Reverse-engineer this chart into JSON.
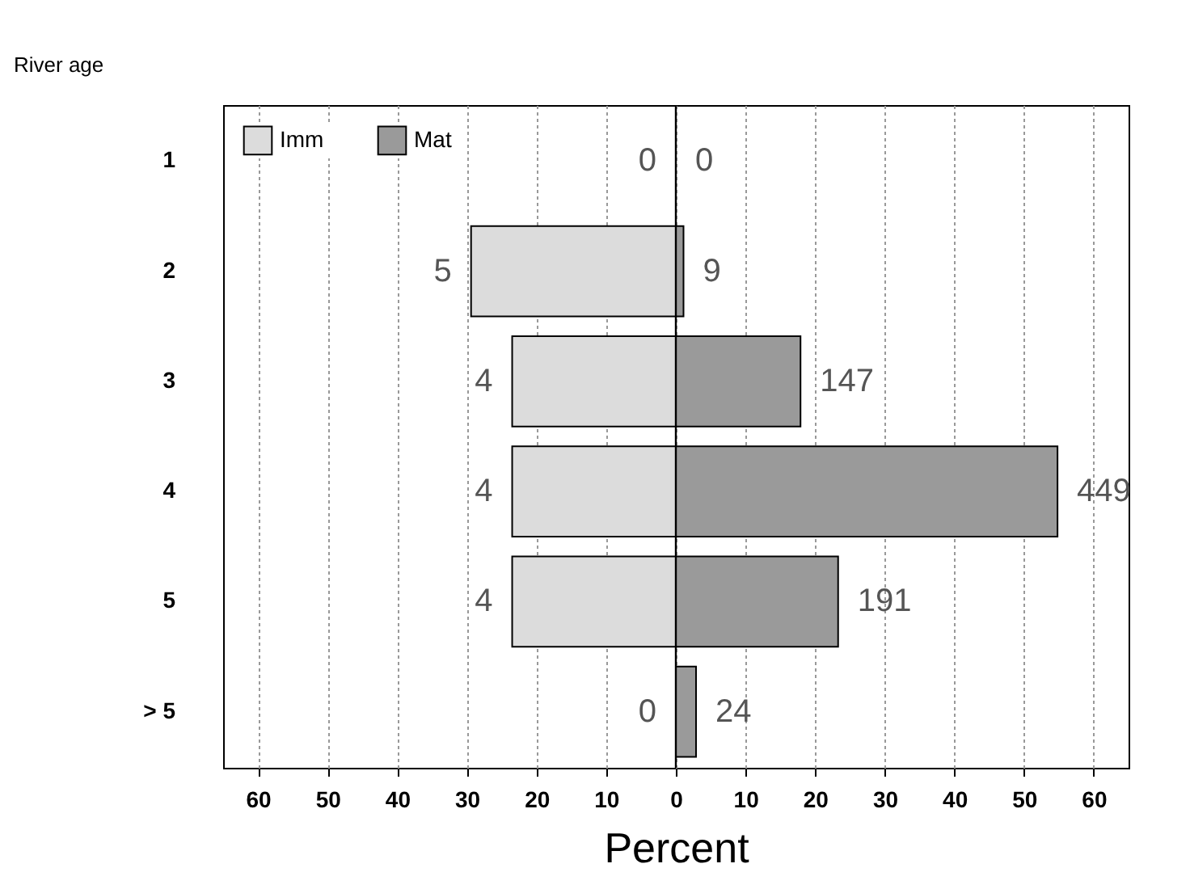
{
  "chart_data": {
    "type": "bar",
    "orientation": "horizontal",
    "stacked": true,
    "xlabel": "Percent",
    "ylabel": "River age",
    "categories": [
      "1",
      "2",
      "3",
      "4",
      "5",
      "> 5"
    ],
    "series": [
      {
        "name": "Imm",
        "color": "#dcdcdc",
        "values": [
          0,
          -29.4,
          -23.5,
          -23.5,
          -23.5,
          0
        ]
      },
      {
        "name": "Mat",
        "color": "#9a9a9a",
        "values": [
          0,
          1.1,
          17.9,
          54.8,
          23.3,
          2.9
        ]
      }
    ],
    "annotations": [
      {
        "text": "0",
        "x": 0,
        "y": "1"
      },
      {
        "text": "0",
        "x": 0,
        "y": "1"
      },
      {
        "text": "5",
        "x": -29.4,
        "y": "2"
      },
      {
        "text": "9",
        "x": 1.1,
        "y": "2"
      },
      {
        "text": "4",
        "x": -23.5,
        "y": "3"
      },
      {
        "text": "147",
        "x": 17.9,
        "y": "3"
      },
      {
        "text": "4",
        "x": -23.5,
        "y": "4"
      },
      {
        "text": "449",
        "x": 54.8,
        "y": "4"
      },
      {
        "text": "4",
        "x": -23.5,
        "y": "5"
      },
      {
        "text": "191",
        "x": 23.3,
        "y": "5"
      },
      {
        "text": "0",
        "x": 0,
        "y": "> 5"
      },
      {
        "text": "24",
        "x": 2.9,
        "y": "> 5"
      }
    ],
    "xlim": [
      -65,
      65
    ],
    "xticks": [
      {
        "value": -60,
        "label": "60"
      },
      {
        "value": -50,
        "label": "50"
      },
      {
        "value": -40,
        "label": "40"
      },
      {
        "value": -30,
        "label": "30"
      },
      {
        "value": -20,
        "label": "20"
      },
      {
        "value": -10,
        "label": "10"
      },
      0,
      10,
      20,
      30,
      40,
      50,
      60
    ],
    "ref_lines": [
      {
        "axis": "x",
        "value": 0,
        "color": "#000000"
      }
    ],
    "grid": "x",
    "legend": "top left"
  }
}
